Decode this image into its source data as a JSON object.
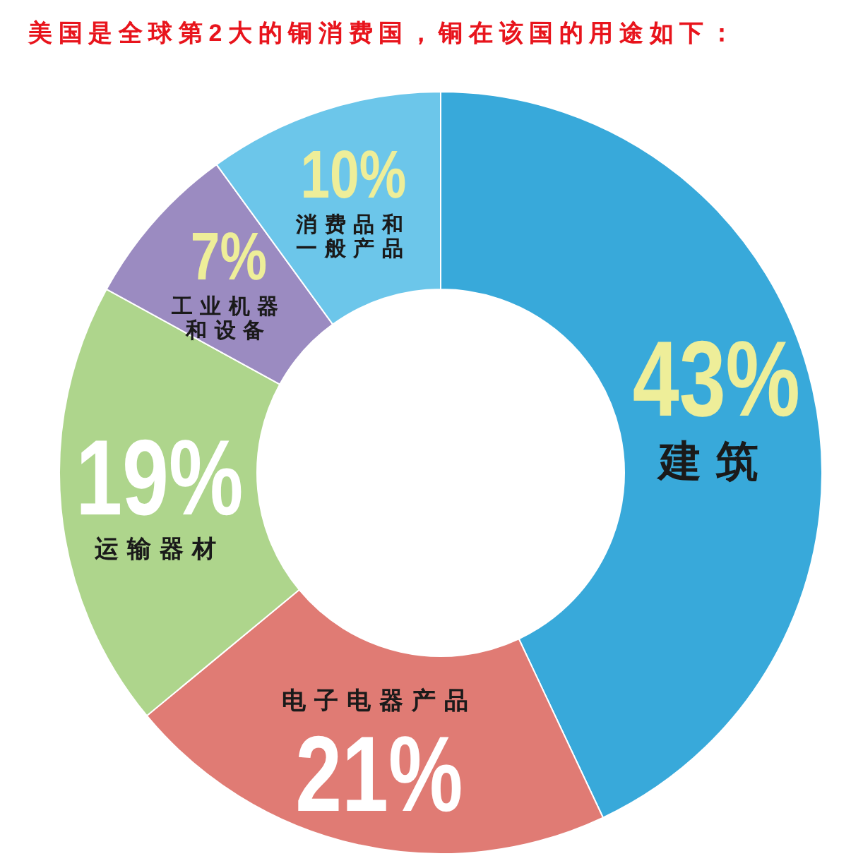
{
  "chart_data": {
    "type": "donut",
    "title": "美国是全球第2大的铜消费国，铜在该国的用途如下：",
    "categories": [
      "建筑",
      "电子电器产品",
      "运输器材",
      "工业机器和设备",
      "消费品和一般产品"
    ],
    "values": [
      43,
      21,
      19,
      7,
      10
    ],
    "colors": [
      "#38a9da",
      "#e07b74",
      "#aed58c",
      "#9b8bc1",
      "#6cc6ea"
    ],
    "value_labels": [
      "43%",
      "21%",
      "19%",
      "7%",
      "10%"
    ]
  }
}
